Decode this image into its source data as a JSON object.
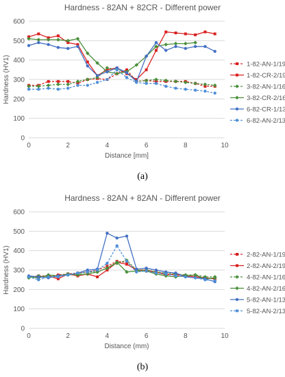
{
  "panels": [
    {
      "caption": "(a)"
    },
    {
      "caption": "(b)"
    }
  ],
  "chart_data": [
    {
      "type": "line",
      "title": "Hardness - 82AN + 82CR - Different power",
      "xlabel": "Distance [mm]",
      "ylabel": "Hardness (HV1)",
      "xlim": [
        0,
        10
      ],
      "ylim": [
        0,
        600
      ],
      "xticks": [
        0,
        2,
        4,
        6,
        8,
        10
      ],
      "yticks": [
        0,
        100,
        200,
        300,
        400,
        500,
        600
      ],
      "grid": true,
      "legend_position": "right",
      "x": [
        0,
        0.5,
        1,
        1.5,
        2,
        2.5,
        3,
        3.5,
        4,
        4.5,
        5,
        5.5,
        6,
        6.5,
        7,
        7.5,
        8,
        8.5,
        9,
        9.5
      ],
      "series": [
        {
          "name": "1-82-AN-1/1950*",
          "color": "#d92020",
          "dash": "3,2",
          "marker": "square",
          "values": [
            270,
            270,
            290,
            290,
            290,
            280,
            300,
            305,
            300,
            330,
            350,
            290,
            295,
            290,
            290,
            290,
            290,
            280,
            265,
            265
          ]
        },
        {
          "name": "1-82-CR-2/1950",
          "color": "#d92020",
          "dash": "",
          "marker": "square",
          "values": [
            520,
            535,
            515,
            525,
            490,
            480,
            390,
            320,
            350,
            360,
            330,
            300,
            350,
            450,
            545,
            540,
            535,
            530,
            545,
            535
          ]
        },
        {
          "name": "3-82-AN-1/1650",
          "color": "#4a8f3a",
          "dash": "3,2",
          "marker": "diamond",
          "values": [
            265,
            265,
            270,
            275,
            275,
            290,
            300,
            310,
            360,
            350,
            340,
            290,
            295,
            300,
            295,
            290,
            285,
            280,
            275,
            270
          ]
        },
        {
          "name": "3-82-CR-2/1650",
          "color": "#4a8f3a",
          "dash": "",
          "marker": "diamond",
          "values": [
            510,
            505,
            505,
            505,
            500,
            510,
            435,
            385,
            340,
            330,
            340,
            375,
            420,
            470,
            480,
            485,
            485,
            490,
            null,
            null
          ]
        },
        {
          "name": "6-82-CR-1/1350",
          "color": "#4470c4",
          "dash": "",
          "marker": "circle",
          "values": [
            475,
            490,
            480,
            465,
            460,
            470,
            370,
            320,
            340,
            360,
            335,
            290,
            420,
            490,
            450,
            470,
            460,
            470,
            470,
            445
          ]
        },
        {
          "name": "6-82-AN-2/1350",
          "color": "#4e8fd8",
          "dash": "3,2",
          "marker": "circle",
          "values": [
            250,
            250,
            255,
            250,
            255,
            270,
            270,
            285,
            300,
            350,
            310,
            285,
            280,
            280,
            265,
            255,
            250,
            245,
            240,
            230
          ]
        }
      ]
    },
    {
      "type": "line",
      "title": "Hardness - 82AN + 82AN - Different power",
      "xlabel": "Distance (mm)",
      "ylabel": "Hardness (HV1)",
      "xlim": [
        0,
        10
      ],
      "ylim": [
        0,
        600
      ],
      "xticks": [
        0,
        2,
        4,
        6,
        8,
        10
      ],
      "yticks": [
        0,
        100,
        200,
        300,
        400,
        500,
        600
      ],
      "grid": true,
      "legend_position": "right",
      "x": [
        0,
        0.5,
        1,
        1.5,
        2,
        2.5,
        3,
        3.5,
        4,
        4.5,
        5,
        5.5,
        6,
        6.5,
        7,
        7.5,
        8,
        8.5,
        9,
        9.5
      ],
      "series": [
        {
          "name": "2-82-AN-1/1950",
          "color": "#d92020",
          "dash": "3,2",
          "marker": "square",
          "values": [
            265,
            270,
            270,
            275,
            280,
            285,
            290,
            300,
            320,
            345,
            340,
            300,
            295,
            290,
            280,
            275,
            270,
            265,
            260,
            255
          ]
        },
        {
          "name": "2-82-AN-2/1950",
          "color": "#d92020",
          "dash": "",
          "marker": "square",
          "values": [
            265,
            265,
            270,
            255,
            280,
            270,
            280,
            265,
            300,
            340,
            330,
            300,
            300,
            290,
            275,
            280,
            270,
            265,
            260,
            255
          ]
        },
        {
          "name": "4-82-AN-1/1650",
          "color": "#4a8f3a",
          "dash": "3,2",
          "marker": "diamond",
          "values": [
            260,
            270,
            265,
            270,
            275,
            280,
            290,
            290,
            310,
            335,
            350,
            300,
            300,
            290,
            285,
            280,
            275,
            275,
            265,
            265
          ]
        },
        {
          "name": "4-82-AN-2/1650",
          "color": "#4a8f3a",
          "dash": "",
          "marker": "diamond",
          "values": [
            265,
            260,
            275,
            270,
            280,
            275,
            280,
            290,
            310,
            340,
            290,
            295,
            295,
            280,
            270,
            265,
            270,
            275,
            255,
            260
          ]
        },
        {
          "name": "5-82-AN-1/1350",
          "color": "#4470c4",
          "dash": "",
          "marker": "circle",
          "values": [
            270,
            265,
            260,
            270,
            275,
            285,
            300,
            305,
            490,
            465,
            475,
            305,
            310,
            300,
            290,
            285,
            265,
            260,
            255,
            240
          ]
        },
        {
          "name": "5-82-AN-2/1350",
          "color": "#4e8fd8",
          "dash": "3,2",
          "marker": "circle",
          "values": [
            265,
            250,
            265,
            265,
            275,
            285,
            290,
            300,
            335,
            425,
            345,
            290,
            295,
            285,
            280,
            270,
            265,
            260,
            250,
            245
          ]
        }
      ]
    }
  ]
}
